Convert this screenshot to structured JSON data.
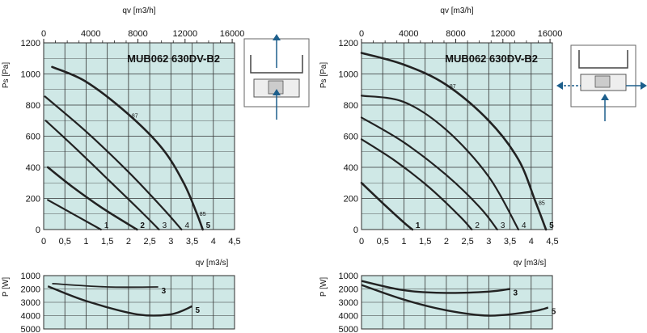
{
  "charts": [
    {
      "id": "left",
      "title": "MUB062 630DV-B2",
      "top_axis_label": "qv [m3/h]",
      "top_ticks": [
        "0",
        "4000",
        "8000",
        "12000",
        "16000"
      ],
      "x_axis_label": "qv [m3/s]",
      "x_ticks": [
        "0",
        "0,5",
        "1",
        "1,5",
        "2",
        "2,5",
        "3",
        "3,5",
        "4",
        "4,5"
      ],
      "y_axis_label": "Ps [Pa]",
      "y_ticks": [
        "0",
        "200",
        "400",
        "600",
        "800",
        "1000",
        "1200"
      ],
      "power_axis_label": "P [W]",
      "power_ticks": [
        "1000",
        "2000",
        "3000",
        "4000",
        "5000"
      ],
      "eff_labels": [
        "87",
        "85"
      ],
      "pressure_curves": [
        {
          "label": "1",
          "bold": false,
          "x": [
            0.1,
            1.35
          ],
          "y": [
            190,
            0
          ]
        },
        {
          "label": "2",
          "bold": true,
          "x": [
            0.1,
            0.7,
            1.4,
            2.2
          ],
          "y": [
            400,
            270,
            135,
            0
          ]
        },
        {
          "label": "3",
          "bold": false,
          "x": [
            0.05,
            0.8,
            1.6,
            2.3,
            2.72
          ],
          "y": [
            700,
            510,
            300,
            115,
            0
          ]
        },
        {
          "label": "4",
          "bold": false,
          "x": [
            0.03,
            1.0,
            2.0,
            2.8,
            3.25
          ],
          "y": [
            855,
            630,
            370,
            140,
            0
          ]
        },
        {
          "label": "5",
          "bold": true,
          "x": [
            0.2,
            1.0,
            2.0,
            2.8,
            3.3,
            3.6,
            3.75
          ],
          "y": [
            1045,
            950,
            740,
            520,
            300,
            110,
            0
          ]
        }
      ],
      "power_curves": [
        {
          "label": "3",
          "bold": false,
          "x": [
            0.2,
            1.5,
            2.7
          ],
          "y": [
            1600,
            1850,
            1850
          ]
        },
        {
          "label": "5",
          "bold": true,
          "x": [
            0.1,
            1.0,
            2.2,
            3.0,
            3.5
          ],
          "y": [
            1800,
            2900,
            3900,
            3900,
            3300
          ]
        }
      ]
    },
    {
      "id": "right",
      "title": "MUB062 630DV-B2",
      "top_axis_label": "qv [m3/h]",
      "top_ticks": [
        "0",
        "4000",
        "8000",
        "12000",
        "16000"
      ],
      "x_axis_label": "qv [m3/s]",
      "x_ticks": [
        "0",
        "0,5",
        "1",
        "1,5",
        "2",
        "2,5",
        "3",
        "3,5",
        "4",
        "4,5"
      ],
      "y_axis_label": "Ps [Pa]",
      "y_ticks": [
        "0",
        "200",
        "400",
        "600",
        "800",
        "1000",
        "1200"
      ],
      "power_axis_label": "P [W]",
      "power_ticks": [
        "1000",
        "2000",
        "3000",
        "4000",
        "5000"
      ],
      "eff_labels": [
        "87",
        "85"
      ],
      "pressure_curves": [
        {
          "label": "1",
          "bold": true,
          "x": [
            0.0,
            0.5,
            1.0,
            1.2
          ],
          "y": [
            300,
            170,
            45,
            0
          ]
        },
        {
          "label": "2",
          "bold": false,
          "x": [
            0.0,
            0.8,
            1.6,
            2.3,
            2.6
          ],
          "y": [
            580,
            440,
            270,
            90,
            0
          ]
        },
        {
          "label": "3",
          "bold": false,
          "x": [
            0.0,
            1.0,
            2.0,
            2.8,
            3.2
          ],
          "y": [
            720,
            560,
            350,
            140,
            0
          ]
        },
        {
          "label": "4",
          "bold": false,
          "x": [
            0.0,
            1.0,
            2.0,
            3.0,
            3.7
          ],
          "y": [
            860,
            820,
            640,
            340,
            0
          ]
        },
        {
          "label": "5",
          "bold": true,
          "x": [
            0.0,
            1.0,
            2.0,
            3.0,
            3.7,
            4.1,
            4.35
          ],
          "y": [
            1135,
            1060,
            930,
            700,
            450,
            180,
            0
          ]
        }
      ],
      "power_curves": [
        {
          "label": "3",
          "bold": true,
          "x": [
            0.0,
            1.0,
            2.0,
            3.0,
            3.5
          ],
          "y": [
            1400,
            2100,
            2300,
            2200,
            2000
          ]
        },
        {
          "label": "5",
          "bold": true,
          "x": [
            0.0,
            1.0,
            2.0,
            3.0,
            4.0,
            4.4
          ],
          "y": [
            1700,
            2800,
            3600,
            4000,
            3700,
            3400
          ]
        }
      ]
    }
  ],
  "colors": {
    "plot_bg": "#cfe8e6",
    "grid": "#333333",
    "curve": "#222222",
    "arrow": "#1d5f8c"
  },
  "icons": [
    "airflow-schematic-vertical",
    "airflow-schematic-horizontal"
  ]
}
